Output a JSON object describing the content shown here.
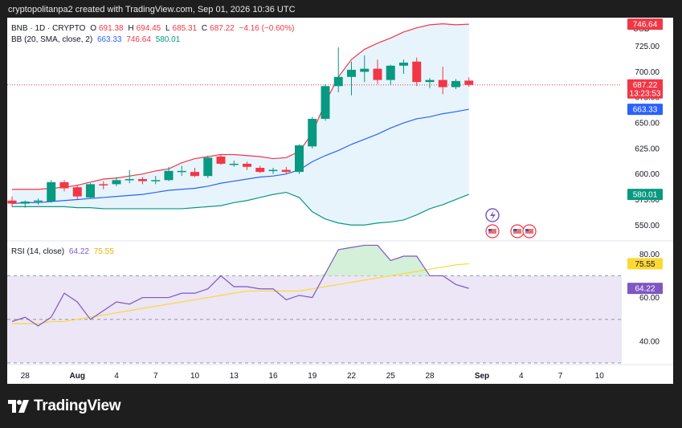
{
  "header": {
    "title": "cryptopolitanpa2 created with TradingView.com, Sep 01, 2026 10:36 UTC"
  },
  "legend": {
    "symbol": "BNB · 1D · CRYPTO",
    "ohlc": {
      "o_label": "O",
      "o": "691.38",
      "h_label": "H",
      "h": "694.45",
      "l_label": "L",
      "l": "685.31",
      "c_label": "C",
      "c": "687.22",
      "change": "−4.16 (−0.60%)"
    },
    "bb": {
      "label": "BB (20, SMA, close, 2)",
      "basis": "663.33",
      "upper": "746.64",
      "lower": "580.01"
    },
    "rsi": {
      "label": "RSI (14, close)",
      "value": "64.22",
      "ma": "75.55"
    }
  },
  "currency": "USD",
  "badges": {
    "upper": "746.64",
    "price": "687.22",
    "countdown": "13:23:53",
    "basis": "663.33",
    "lower": "580.01",
    "rsi_ma": "75.55",
    "rsi": "64.22"
  },
  "colors": {
    "up": "#089981",
    "down": "#f23645",
    "bb_upper": "#f23645",
    "bb_basis": "#2962ff",
    "bb_lower": "#089981",
    "bb_fill": "#e8f4fc",
    "rsi": "#7e57c2",
    "rsi_ma": "#fdd835",
    "rsi_band": "#ece6f6",
    "rsi_ob_fill": "#d4f0d8",
    "blue_badge": "#2962ff",
    "yellow_badge": "#fdd835"
  },
  "chart_data": [
    {
      "type": "candlestick",
      "title": "BNB · 1D · CRYPTO",
      "ylabel": "USD",
      "price_axis_ticks": [
        "550.00",
        "575.00",
        "600.00",
        "625.00",
        "650.00",
        "675.00",
        "700.00",
        "725.00"
      ],
      "ylim": [
        540,
        753
      ],
      "date_axis_ticks": [
        "28",
        "Aug",
        "4",
        "7",
        "10",
        "13",
        "16",
        "19",
        "22",
        "25",
        "28",
        "Sep",
        "4",
        "7",
        "10"
      ],
      "candles": [
        {
          "date": "Jul 27",
          "open": 574,
          "high": 578,
          "low": 568,
          "close": 571
        },
        {
          "date": "Jul 28",
          "open": 571,
          "high": 574,
          "low": 567,
          "close": 573
        },
        {
          "date": "Jul 29",
          "open": 573,
          "high": 576,
          "low": 570,
          "close": 574
        },
        {
          "date": "Jul 30",
          "open": 573,
          "high": 594,
          "low": 572,
          "close": 592
        },
        {
          "date": "Jul 31",
          "open": 592,
          "high": 594,
          "low": 583,
          "close": 586
        },
        {
          "date": "Aug 1",
          "open": 587,
          "high": 589,
          "low": 575,
          "close": 578
        },
        {
          "date": "Aug 2",
          "open": 577,
          "high": 591,
          "low": 576,
          "close": 590
        },
        {
          "date": "Aug 3",
          "open": 590,
          "high": 593,
          "low": 585,
          "close": 589
        },
        {
          "date": "Aug 4",
          "open": 590,
          "high": 597,
          "low": 588,
          "close": 594
        },
        {
          "date": "Aug 5",
          "open": 594,
          "high": 604,
          "low": 591,
          "close": 595
        },
        {
          "date": "Aug 6",
          "open": 595,
          "high": 597,
          "low": 590,
          "close": 593
        },
        {
          "date": "Aug 7",
          "open": 593,
          "high": 598,
          "low": 590,
          "close": 594
        },
        {
          "date": "Aug 8",
          "open": 594,
          "high": 607,
          "low": 593,
          "close": 603
        },
        {
          "date": "Aug 9",
          "open": 603,
          "high": 608,
          "low": 598,
          "close": 603
        },
        {
          "date": "Aug 10",
          "open": 602,
          "high": 606,
          "low": 597,
          "close": 598
        },
        {
          "date": "Aug 11",
          "open": 598,
          "high": 618,
          "low": 596,
          "close": 616
        },
        {
          "date": "Aug 12",
          "open": 617,
          "high": 619,
          "low": 609,
          "close": 610
        },
        {
          "date": "Aug 13",
          "open": 610,
          "high": 613,
          "low": 607,
          "close": 610
        },
        {
          "date": "Aug 14",
          "open": 610,
          "high": 612,
          "low": 604,
          "close": 607
        },
        {
          "date": "Aug 15",
          "open": 606,
          "high": 608,
          "low": 601,
          "close": 602
        },
        {
          "date": "Aug 16",
          "open": 603,
          "high": 606,
          "low": 600,
          "close": 604
        },
        {
          "date": "Aug 17",
          "open": 604,
          "high": 607,
          "low": 600,
          "close": 602
        },
        {
          "date": "Aug 18",
          "open": 602,
          "high": 629,
          "low": 600,
          "close": 628
        },
        {
          "date": "Aug 19",
          "open": 627,
          "high": 656,
          "low": 625,
          "close": 654
        },
        {
          "date": "Aug 20",
          "open": 654,
          "high": 688,
          "low": 652,
          "close": 686
        },
        {
          "date": "Aug 21",
          "open": 686,
          "high": 724,
          "low": 680,
          "close": 695
        },
        {
          "date": "Aug 22",
          "open": 695,
          "high": 710,
          "low": 677,
          "close": 702
        },
        {
          "date": "Aug 23",
          "open": 700,
          "high": 716,
          "low": 690,
          "close": 703
        },
        {
          "date": "Aug 24",
          "open": 703,
          "high": 712,
          "low": 688,
          "close": 692
        },
        {
          "date": "Aug 25",
          "open": 692,
          "high": 707,
          "low": 687,
          "close": 706
        },
        {
          "date": "Aug 26",
          "open": 706,
          "high": 712,
          "low": 698,
          "close": 709
        },
        {
          "date": "Aug 27",
          "open": 710,
          "high": 714,
          "low": 686,
          "close": 690
        },
        {
          "date": "Aug 28",
          "open": 690,
          "high": 694,
          "low": 684,
          "close": 692
        },
        {
          "date": "Aug 29",
          "open": 692,
          "high": 705,
          "low": 678,
          "close": 685
        },
        {
          "date": "Aug 30",
          "open": 685,
          "high": 693,
          "low": 683,
          "close": 691
        },
        {
          "date": "Aug 31",
          "open": 691.38,
          "high": 694.45,
          "low": 685.31,
          "close": 687.22
        }
      ],
      "bollinger_bands": {
        "period": 20,
        "upper": [
          585,
          585,
          585,
          586,
          587,
          589,
          592,
          595,
          596,
          598,
          600,
          603,
          605,
          611,
          615,
          617,
          619,
          619,
          618,
          617,
          615,
          616,
          622,
          640,
          670,
          695,
          712,
          722,
          728,
          733,
          739,
          743,
          746,
          747,
          746,
          746.64
        ],
        "basis": [
          571,
          572,
          572,
          573,
          574,
          575,
          576,
          577,
          578,
          579,
          580,
          582,
          584,
          585,
          586,
          588,
          591,
          593,
          595,
          597,
          598,
          600,
          604,
          612,
          618,
          623,
          629,
          634,
          639,
          645,
          650,
          654,
          656,
          659,
          661,
          663.33
        ],
        "lower": [
          568,
          568,
          568,
          568,
          568,
          567,
          567,
          566,
          566,
          566,
          566,
          566,
          566,
          566,
          567,
          568,
          569,
          572,
          574,
          577,
          580,
          582,
          577,
          563,
          556,
          552,
          550,
          550,
          552,
          553,
          555,
          560,
          566,
          570,
          575,
          580.01
        ]
      }
    },
    {
      "type": "line",
      "title": "RSI (14, close)",
      "axis_ticks": [
        "40.00",
        "60.00",
        "80.00"
      ],
      "ylim": [
        30,
        86
      ],
      "levels": {
        "upper": 70,
        "middle": 50,
        "lower": 30
      },
      "series": [
        {
          "name": "RSI (14, close)",
          "values": [
            49,
            51,
            47,
            51,
            62,
            58,
            50,
            54,
            58,
            57,
            60,
            60,
            60,
            62,
            62,
            64,
            70,
            65,
            65,
            64,
            64,
            59,
            61,
            60,
            71,
            82,
            83,
            84,
            84,
            77,
            79,
            79,
            70,
            70,
            66,
            64.22
          ]
        },
        {
          "name": "RSI-based MA",
          "values": [
            48,
            48,
            48,
            49,
            49,
            50,
            51,
            52,
            53,
            54,
            55,
            56,
            57,
            58,
            59,
            60,
            61,
            62,
            63,
            63,
            63,
            63,
            63,
            64,
            65,
            66,
            67,
            68,
            69,
            70,
            71,
            72,
            73,
            74,
            75,
            75.55
          ]
        }
      ]
    }
  ]
}
